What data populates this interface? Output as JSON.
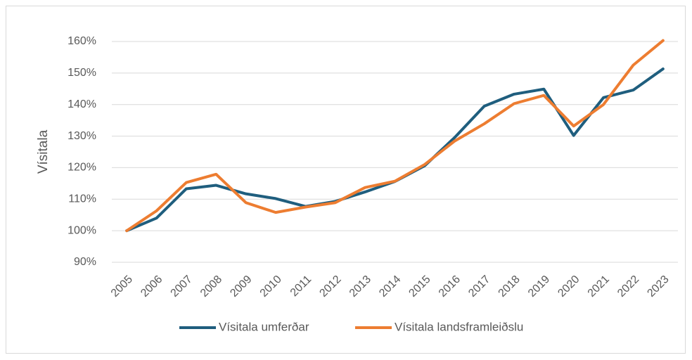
{
  "chart_data": {
    "type": "line",
    "y_label": "Vísitala",
    "categories": [
      "2005",
      "2006",
      "2007",
      "2008",
      "2009",
      "2010",
      "2011",
      "2012",
      "2013",
      "2014",
      "2015",
      "2016",
      "2017",
      "2018",
      "2019",
      "2020",
      "2021",
      "2022",
      "2023"
    ],
    "series": [
      {
        "name": "Vísitala umferðar",
        "color": "#1f5e7e",
        "values": [
          100,
          104,
          113.3,
          114.4,
          111.7,
          110.2,
          107.7,
          109.3,
          112.3,
          115.6,
          120.6,
          129.5,
          139.5,
          143.3,
          144.9,
          130.2,
          142.2,
          144.6,
          151.3
        ]
      },
      {
        "name": "Vísitala landsframleiðslu",
        "color": "#ed7d31",
        "values": [
          100,
          106.3,
          115.3,
          117.9,
          108.9,
          105.8,
          107.5,
          108.9,
          113.7,
          115.7,
          121,
          128.4,
          133.9,
          140.3,
          142.9,
          133.2,
          140,
          152.5,
          160.3
        ]
      }
    ],
    "ylim": [
      90,
      160
    ],
    "yticks": [
      {
        "value": 90,
        "label": "90%"
      },
      {
        "value": 100,
        "label": "100%"
      },
      {
        "value": 110,
        "label": "110%"
      },
      {
        "value": 120,
        "label": "120%"
      },
      {
        "value": 130,
        "label": "130%"
      },
      {
        "value": 140,
        "label": "140%"
      },
      {
        "value": 150,
        "label": "150%"
      },
      {
        "value": 160,
        "label": "160%"
      }
    ],
    "grid": true,
    "legend": "bottom"
  }
}
